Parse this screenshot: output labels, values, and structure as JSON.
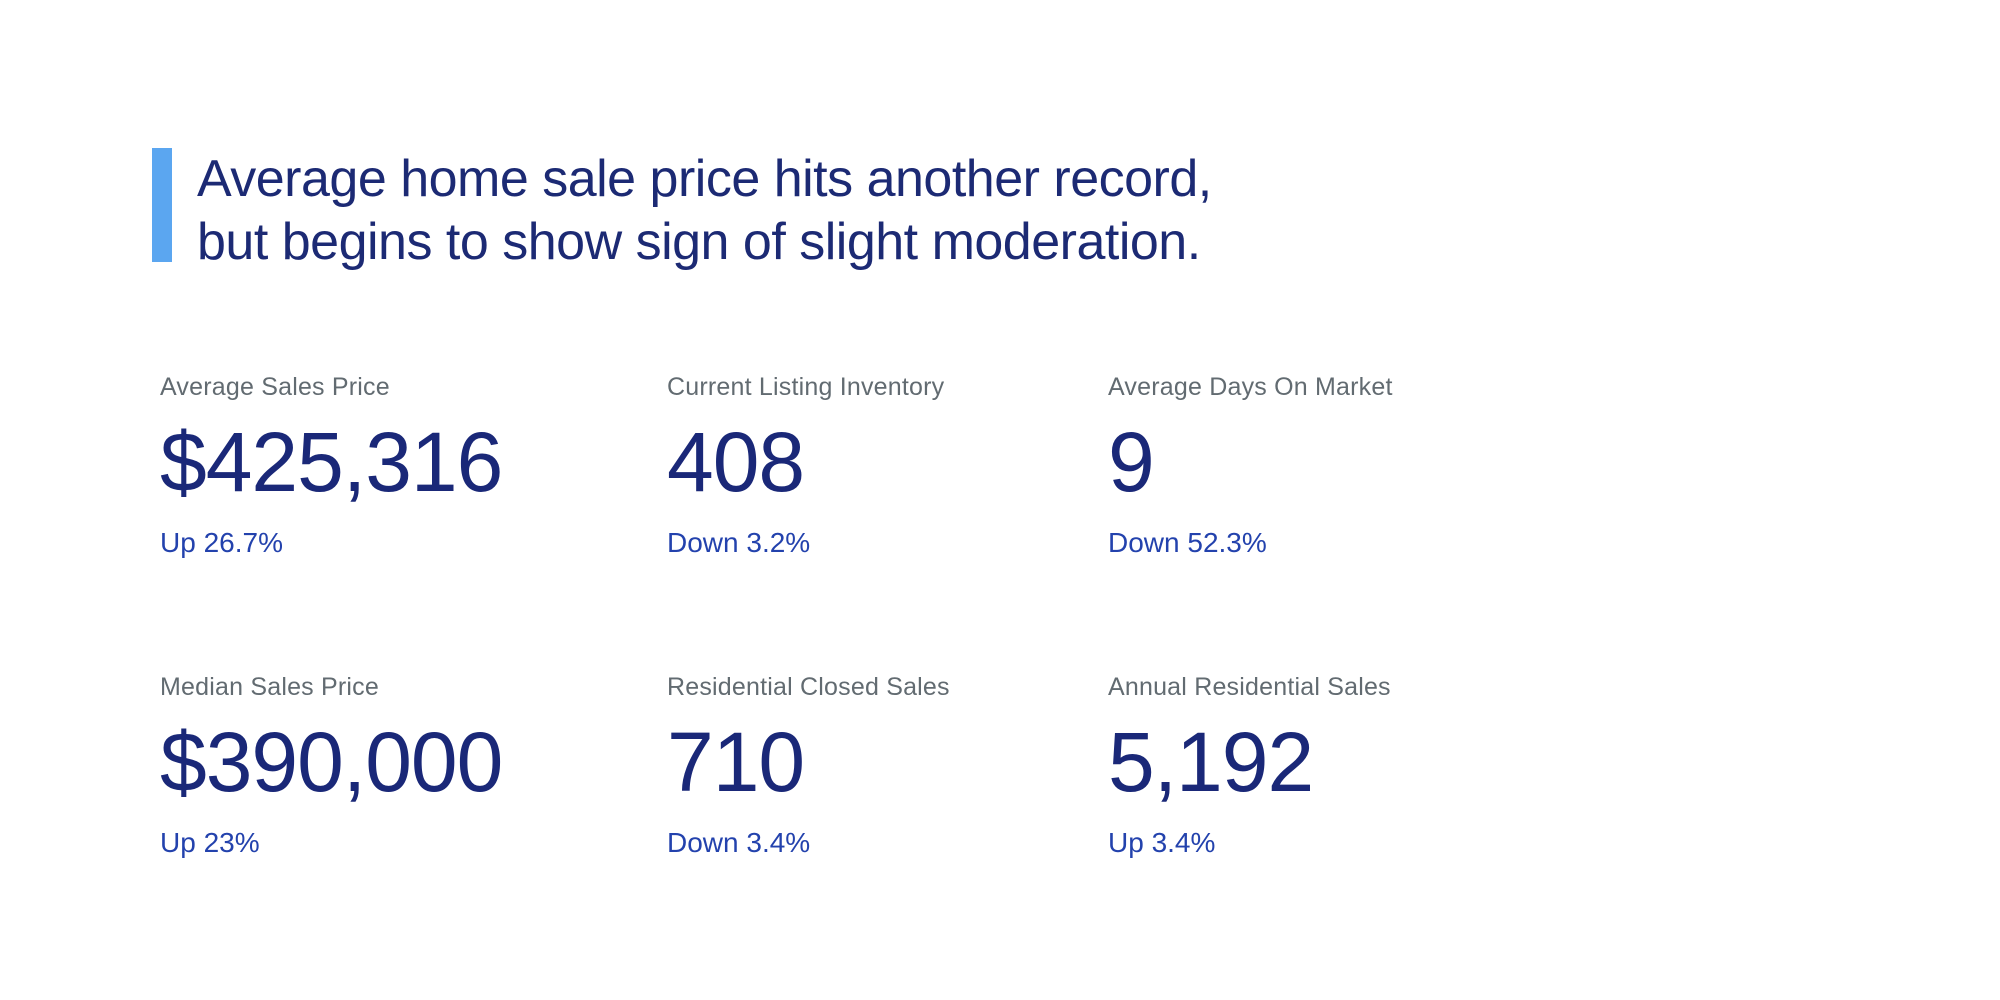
{
  "headline": {
    "line1": "Average home sale price hits another record,",
    "line2": "but begins to show sign of slight moderation.",
    "accent_color": "#5ba6f0",
    "text_color": "#1c2a74"
  },
  "stats": {
    "label_color": "#626b71",
    "value_color": "#1a2878",
    "change_color": "#2342ad",
    "items": [
      {
        "label": "Average Sales Price",
        "value": "$425,316",
        "change": "Up 26.7%",
        "direction": "up"
      },
      {
        "label": "Current Listing Inventory",
        "value": "408",
        "change": "Down 3.2%",
        "direction": "down"
      },
      {
        "label": "Average Days On Market",
        "value": "9",
        "change": "Down 52.3%",
        "direction": "down"
      },
      {
        "label": "Median Sales Price",
        "value": "$390,000",
        "change": "Up 23%",
        "direction": "up"
      },
      {
        "label": "Residential Closed Sales",
        "value": "710",
        "change": "Down 3.4%",
        "direction": "down"
      },
      {
        "label": "Annual Residential Sales",
        "value": "5,192",
        "change": "Up 3.4%",
        "direction": "up"
      }
    ]
  }
}
